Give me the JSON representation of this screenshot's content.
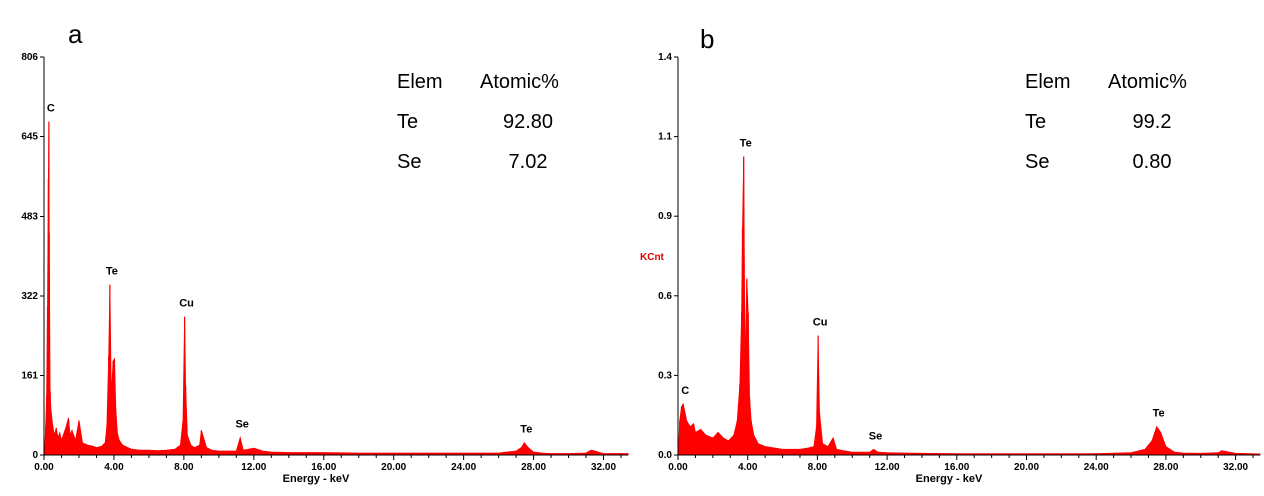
{
  "colors": {
    "spectrum": "#ff0000",
    "axis": "#000000",
    "ylabel": "#e00000"
  },
  "chart_data": [
    {
      "type": "line",
      "panel_label": "a",
      "xlabel": "Energy - keV",
      "ylabel": "",
      "xlim": [
        0,
        33.4
      ],
      "ylim": [
        0,
        806
      ],
      "x_ticks": [
        "0.00",
        "4.00",
        "8.00",
        "12.00",
        "16.00",
        "20.00",
        "24.00",
        "28.00",
        "32.00"
      ],
      "x_tick_values": [
        0,
        4,
        8,
        12,
        16,
        20,
        24,
        28,
        32
      ],
      "y_ticks": [
        "0",
        "161",
        "322",
        "483",
        "645",
        "806"
      ],
      "y_tick_values": [
        0,
        161,
        322,
        483,
        645,
        806
      ],
      "peaks": [
        {
          "label": "C",
          "x": 0.28,
          "y": 675
        },
        {
          "label": "Te",
          "x": 3.77,
          "y": 345
        },
        {
          "label": "Cu",
          "x": 8.04,
          "y": 280
        },
        {
          "label": "Se",
          "x": 11.22,
          "y": 35
        },
        {
          "label": "Te",
          "x": 27.47,
          "y": 25
        }
      ],
      "series": [
        {
          "x": [
            0.05,
            0.1,
            0.15,
            0.2,
            0.25,
            0.28,
            0.3,
            0.35,
            0.4,
            0.5,
            0.6,
            0.7,
            0.8,
            0.9,
            1.0,
            1.2,
            1.4,
            1.5,
            1.6,
            1.8,
            2.0,
            2.2,
            2.5,
            2.8,
            3.0,
            3.3,
            3.5,
            3.6,
            3.7,
            3.77,
            3.85,
            3.95,
            4.03,
            4.11,
            4.2,
            4.3,
            4.5,
            4.8,
            5.0,
            5.5,
            6.0,
            6.5,
            7.0,
            7.5,
            7.8,
            7.95,
            8.04,
            8.1,
            8.2,
            8.4,
            8.6,
            8.9,
            9.0,
            9.3,
            9.6,
            10.0,
            10.5,
            11.0,
            11.22,
            11.4,
            12.0,
            12.5,
            13.0,
            14.0,
            16.0,
            18.0,
            20.0,
            22.0,
            24.0,
            26.0,
            27.0,
            27.3,
            27.47,
            27.7,
            28.0,
            28.5,
            29.0,
            30.0,
            31.0,
            31.3,
            32.0,
            33.4
          ],
          "y": [
            20,
            60,
            120,
            300,
            560,
            675,
            450,
            130,
            90,
            60,
            40,
            55,
            35,
            45,
            30,
            50,
            75,
            40,
            50,
            30,
            70,
            25,
            20,
            18,
            15,
            18,
            25,
            60,
            200,
            345,
            120,
            190,
            195,
            90,
            45,
            30,
            20,
            15,
            12,
            10,
            10,
            9,
            10,
            12,
            20,
            70,
            280,
            140,
            40,
            20,
            15,
            20,
            50,
            15,
            10,
            8,
            8,
            8,
            35,
            10,
            14,
            8,
            6,
            5,
            5,
            4,
            4,
            4,
            4,
            4,
            8,
            15,
            25,
            15,
            6,
            4,
            3,
            3,
            4,
            10,
            3,
            3
          ]
        }
      ],
      "table": {
        "headers": [
          "Elem",
          "Atomic%"
        ],
        "rows": [
          [
            "Te",
            "92.80"
          ],
          [
            "Se",
            "7.02"
          ]
        ]
      }
    },
    {
      "type": "line",
      "panel_label": "b",
      "xlabel": "Energy - keV",
      "ylabel": "KCnt",
      "xlim": [
        0,
        33.4
      ],
      "ylim": [
        0,
        1.4
      ],
      "x_ticks": [
        "0.00",
        "4.00",
        "8.00",
        "12.00",
        "16.00",
        "20.00",
        "24.00",
        "28.00",
        "32.00"
      ],
      "x_tick_values": [
        0,
        4,
        8,
        12,
        16,
        20,
        24,
        28,
        32
      ],
      "y_ticks": [
        "0.0",
        "0.3",
        "0.6",
        "0.9",
        "1.1",
        "1.4"
      ],
      "y_tick_values": [
        0,
        0.28,
        0.56,
        0.84,
        1.12,
        1.4
      ],
      "peaks": [
        {
          "label": "C",
          "x": 0.3,
          "y": 0.18
        },
        {
          "label": "Te",
          "x": 3.77,
          "y": 1.05
        },
        {
          "label": "Cu",
          "x": 8.04,
          "y": 0.42
        },
        {
          "label": "Se",
          "x": 11.22,
          "y": 0.02
        },
        {
          "label": "Te",
          "x": 27.47,
          "y": 0.1
        }
      ],
      "series": [
        {
          "x": [
            0.05,
            0.1,
            0.2,
            0.3,
            0.4,
            0.5,
            0.7,
            0.9,
            1.0,
            1.3,
            1.6,
            2.0,
            2.3,
            2.6,
            2.9,
            3.2,
            3.4,
            3.55,
            3.65,
            3.7,
            3.77,
            3.85,
            3.95,
            4.03,
            4.11,
            4.2,
            4.35,
            4.6,
            5.0,
            5.5,
            6.0,
            6.5,
            7.0,
            7.5,
            7.8,
            7.95,
            8.04,
            8.12,
            8.3,
            8.6,
            8.9,
            9.1,
            9.5,
            10.0,
            11.0,
            11.22,
            11.5,
            12.0,
            13.0,
            14.0,
            16.0,
            18.0,
            20.0,
            22.0,
            24.0,
            26.0,
            26.8,
            27.2,
            27.47,
            27.7,
            28.0,
            28.5,
            29.0,
            30.0,
            31.0,
            31.2,
            32.0,
            33.4
          ],
          "y": [
            0.05,
            0.12,
            0.17,
            0.18,
            0.15,
            0.12,
            0.1,
            0.11,
            0.08,
            0.09,
            0.07,
            0.06,
            0.08,
            0.06,
            0.05,
            0.07,
            0.12,
            0.25,
            0.5,
            0.8,
            1.05,
            0.3,
            0.62,
            0.5,
            0.2,
            0.12,
            0.07,
            0.04,
            0.03,
            0.025,
            0.02,
            0.02,
            0.02,
            0.025,
            0.03,
            0.1,
            0.42,
            0.15,
            0.04,
            0.03,
            0.06,
            0.02,
            0.015,
            0.01,
            0.01,
            0.02,
            0.01,
            0.008,
            0.007,
            0.006,
            0.005,
            0.005,
            0.005,
            0.005,
            0.005,
            0.008,
            0.02,
            0.05,
            0.1,
            0.08,
            0.03,
            0.01,
            0.007,
            0.006,
            0.008,
            0.015,
            0.006,
            0.004
          ]
        }
      ],
      "table": {
        "headers": [
          "Elem",
          "Atomic%"
        ],
        "rows": [
          [
            "Te",
            "99.2"
          ],
          [
            "Se",
            "0.80"
          ]
        ]
      }
    }
  ]
}
